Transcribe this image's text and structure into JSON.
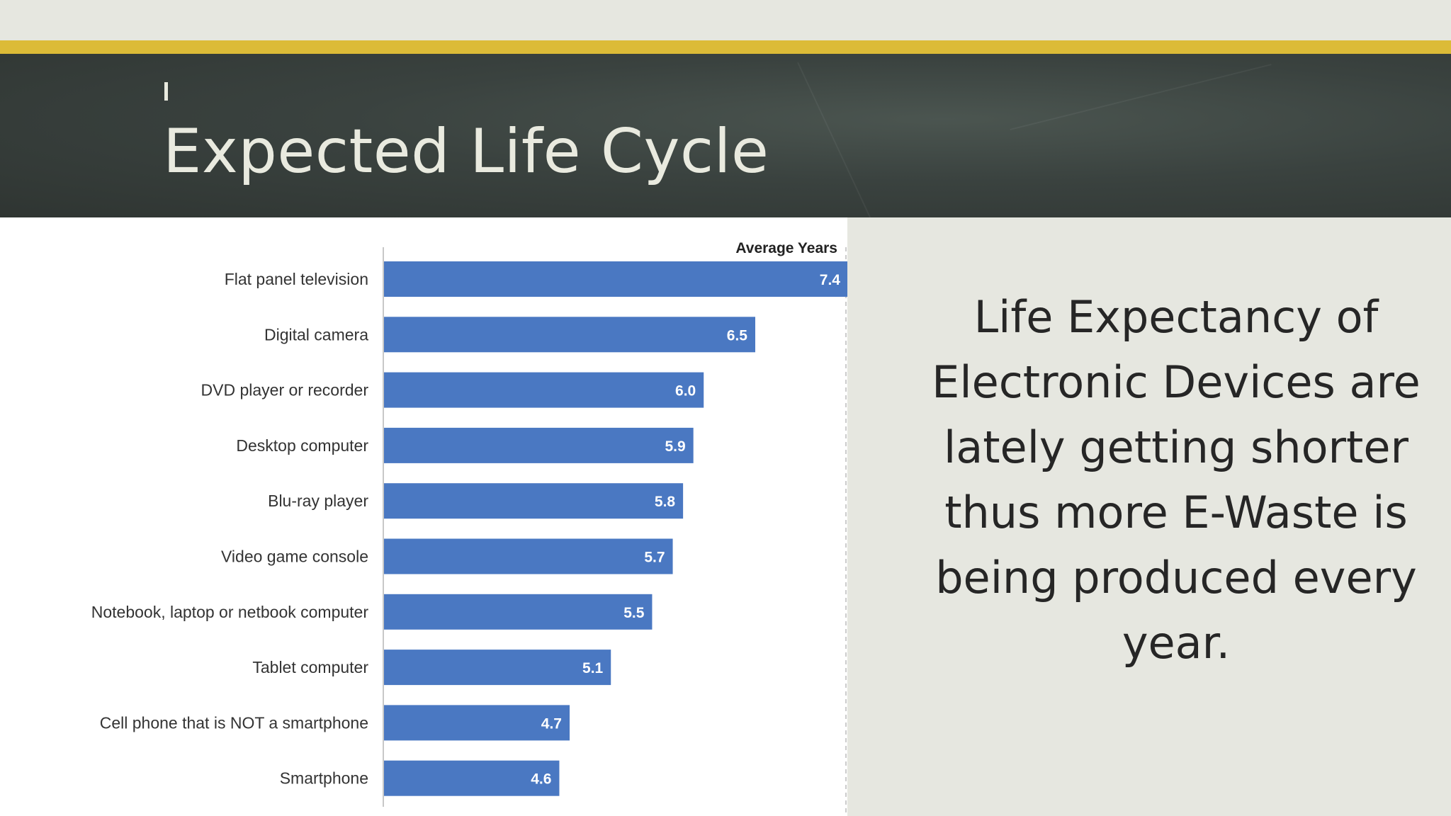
{
  "slide": {
    "title": "Expected Life Cycle",
    "body_text": "Life Expectancy of Electronic Devices are lately getting shorter thus more E-Waste is being produced every year."
  },
  "colors": {
    "accent_bar": "#dcbb37",
    "header_bg": "#394240",
    "bar_fill": "#4a78c2",
    "slide_bg": "#e6e7e0"
  },
  "chart_data": {
    "type": "bar",
    "orientation": "horizontal",
    "column_header": "Average Years",
    "categories": [
      "Flat panel television",
      "Digital camera",
      "DVD player or recorder",
      "Desktop computer",
      "Blu-ray player",
      "Video game console",
      "Notebook, laptop or netbook computer",
      "Tablet computer",
      "Cell phone that is NOT a smartphone",
      "Smartphone"
    ],
    "values": [
      7.4,
      6.5,
      6.0,
      5.9,
      5.8,
      5.7,
      5.5,
      5.1,
      4.7,
      4.6
    ],
    "value_labels": [
      "7.4",
      "6.5",
      "6.0",
      "5.9",
      "5.8",
      "5.7",
      "5.5",
      "5.1",
      "4.7",
      "4.6"
    ],
    "xlim": [
      2.9,
      7.4
    ],
    "grid": false,
    "legend": "none"
  }
}
